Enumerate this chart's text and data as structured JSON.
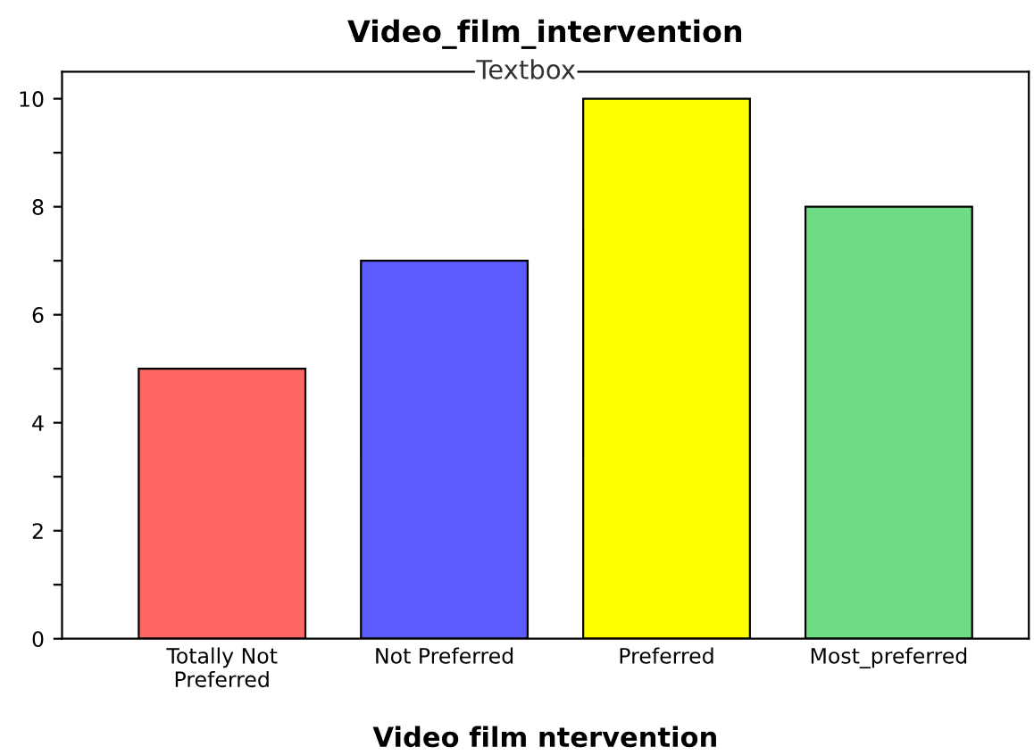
{
  "chart_data": {
    "type": "bar",
    "title": "Video_film_intervention",
    "xlabel": "Video film ntervention",
    "annotations": [
      "Textbox"
    ],
    "categories": [
      "Totally Not\nPreferred",
      "Not Preferred",
      "Preferred",
      "Most_preferred"
    ],
    "values": [
      5,
      7,
      10,
      8
    ],
    "colors": [
      "#ff6666",
      "#5b5bff",
      "#ffff00",
      "#6edc84"
    ],
    "ylim": [
      0,
      10.5
    ],
    "yticks": [
      0,
      {
        "value": 1,
        "label": null
      },
      2,
      {
        "value": 3,
        "label": null
      },
      4,
      {
        "value": 5,
        "label": null
      },
      6,
      {
        "value": 7,
        "label": null
      },
      8,
      {
        "value": 9,
        "label": null
      },
      10
    ],
    "grid": false
  }
}
